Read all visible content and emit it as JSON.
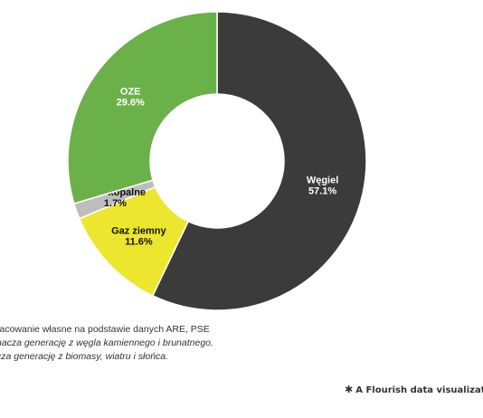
{
  "chart_data": {
    "type": "pie",
    "variant": "donut",
    "segments": [
      {
        "label": "Węgiel",
        "value": 57.1,
        "value_label": "57.1%",
        "color": "#3b3b3b",
        "text_color": "#ffffff"
      },
      {
        "label": "Gaz ziemny",
        "value": 11.6,
        "value_label": "11.6%",
        "color": "#ece62f",
        "text_color": "#111111"
      },
      {
        "label": "Inne kopalne",
        "value": 1.7,
        "value_label": "1.7%",
        "color": "#bdbdbd",
        "text_color": "#111111"
      },
      {
        "label": "OZE",
        "value": 29.6,
        "value_label": "29.6%",
        "color": "#6bb14a",
        "text_color": "#ffffff"
      }
    ],
    "legend": "none"
  },
  "notes": {
    "source": "racowanie własne na podstawie danych ARE, PSE",
    "note1": "nacza generację z węgla kamiennego i brunatnego.",
    "note2": "cza generację z biomasy, wiatru i słońca."
  },
  "credit": {
    "icon": "flourish-star-icon",
    "text": "A Flourish data visualizatic"
  }
}
